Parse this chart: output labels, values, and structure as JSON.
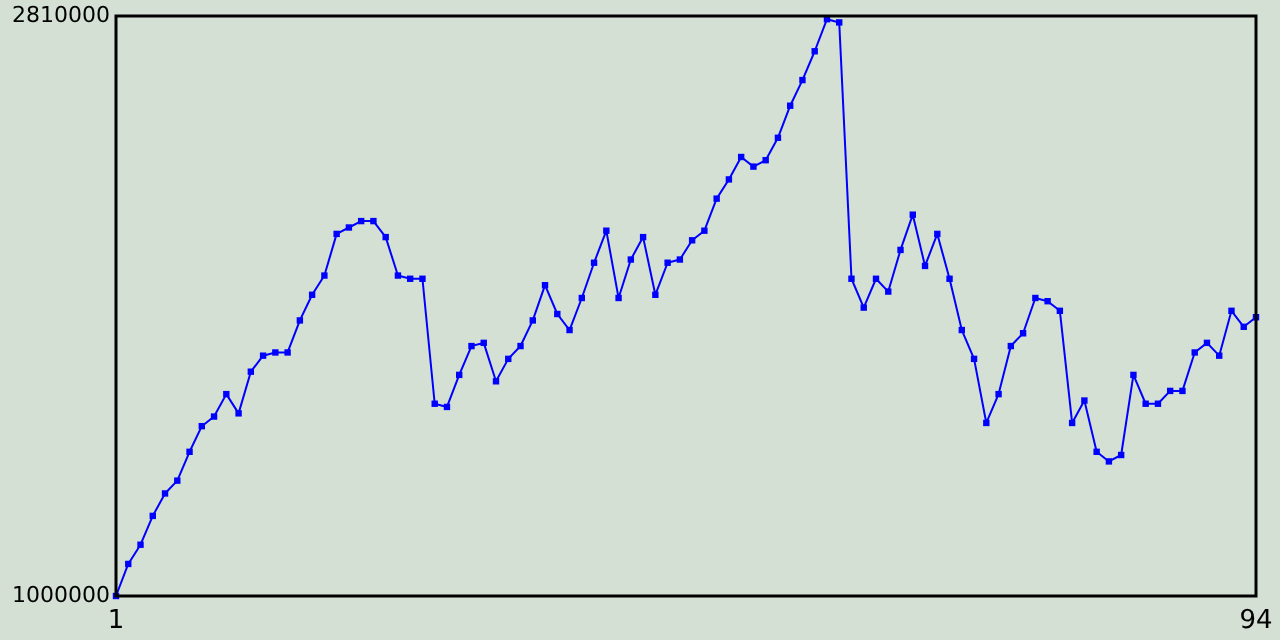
{
  "chart_data": {
    "type": "line",
    "marker": "square",
    "xlim": [
      1,
      94
    ],
    "xticks": [
      1,
      94
    ],
    "ylim": [
      1000000,
      2810000
    ],
    "yticks": [
      1000000,
      2810000
    ],
    "x": [
      1,
      2,
      3,
      4,
      5,
      6,
      7,
      8,
      9,
      10,
      11,
      12,
      13,
      14,
      15,
      16,
      17,
      18,
      19,
      20,
      21,
      22,
      23,
      24,
      25,
      26,
      27,
      28,
      29,
      30,
      31,
      32,
      33,
      34,
      35,
      36,
      37,
      38,
      39,
      40,
      41,
      42,
      43,
      44,
      45,
      46,
      47,
      48,
      49,
      50,
      51,
      52,
      53,
      54,
      55,
      56,
      57,
      58,
      59,
      60,
      61,
      62,
      63,
      64,
      65,
      66,
      67,
      68,
      69,
      70,
      71,
      72,
      73,
      74,
      75,
      76,
      77,
      78,
      79,
      80,
      81,
      82,
      83,
      84,
      85,
      86,
      87,
      88,
      89,
      90,
      91,
      92,
      93,
      94
    ],
    "series": [
      {
        "color": "#0000ff",
        "values": [
          1000000,
          1100000,
          1160000,
          1250000,
          1320000,
          1360000,
          1450000,
          1530000,
          1560000,
          1630000,
          1570000,
          1700000,
          1750000,
          1760000,
          1760000,
          1860000,
          1940000,
          2000000,
          2130000,
          2150000,
          2170000,
          2170000,
          2120000,
          2000000,
          1990000,
          1990000,
          1600000,
          1590000,
          1690000,
          1780000,
          1790000,
          1670000,
          1740000,
          1780000,
          1860000,
          1970000,
          1880000,
          1830000,
          1930000,
          2040000,
          2140000,
          1930000,
          2050000,
          2120000,
          1940000,
          2040000,
          2050000,
          2110000,
          2140000,
          2240000,
          2300000,
          2370000,
          2340000,
          2360000,
          2430000,
          2530000,
          2610000,
          2700000,
          2800000,
          2790000,
          1990000,
          1900000,
          1990000,
          1950000,
          2080000,
          2190000,
          2030000,
          2130000,
          1990000,
          1830000,
          1740000,
          1540000,
          1630000,
          1780000,
          1820000,
          1930000,
          1920000,
          1890000,
          1540000,
          1610000,
          1450000,
          1420000,
          1440000,
          1690000,
          1600000,
          1600000,
          1640000,
          1640000,
          1760000,
          1790000,
          1750000,
          1890000,
          1840000,
          1870000
        ]
      }
    ]
  }
}
